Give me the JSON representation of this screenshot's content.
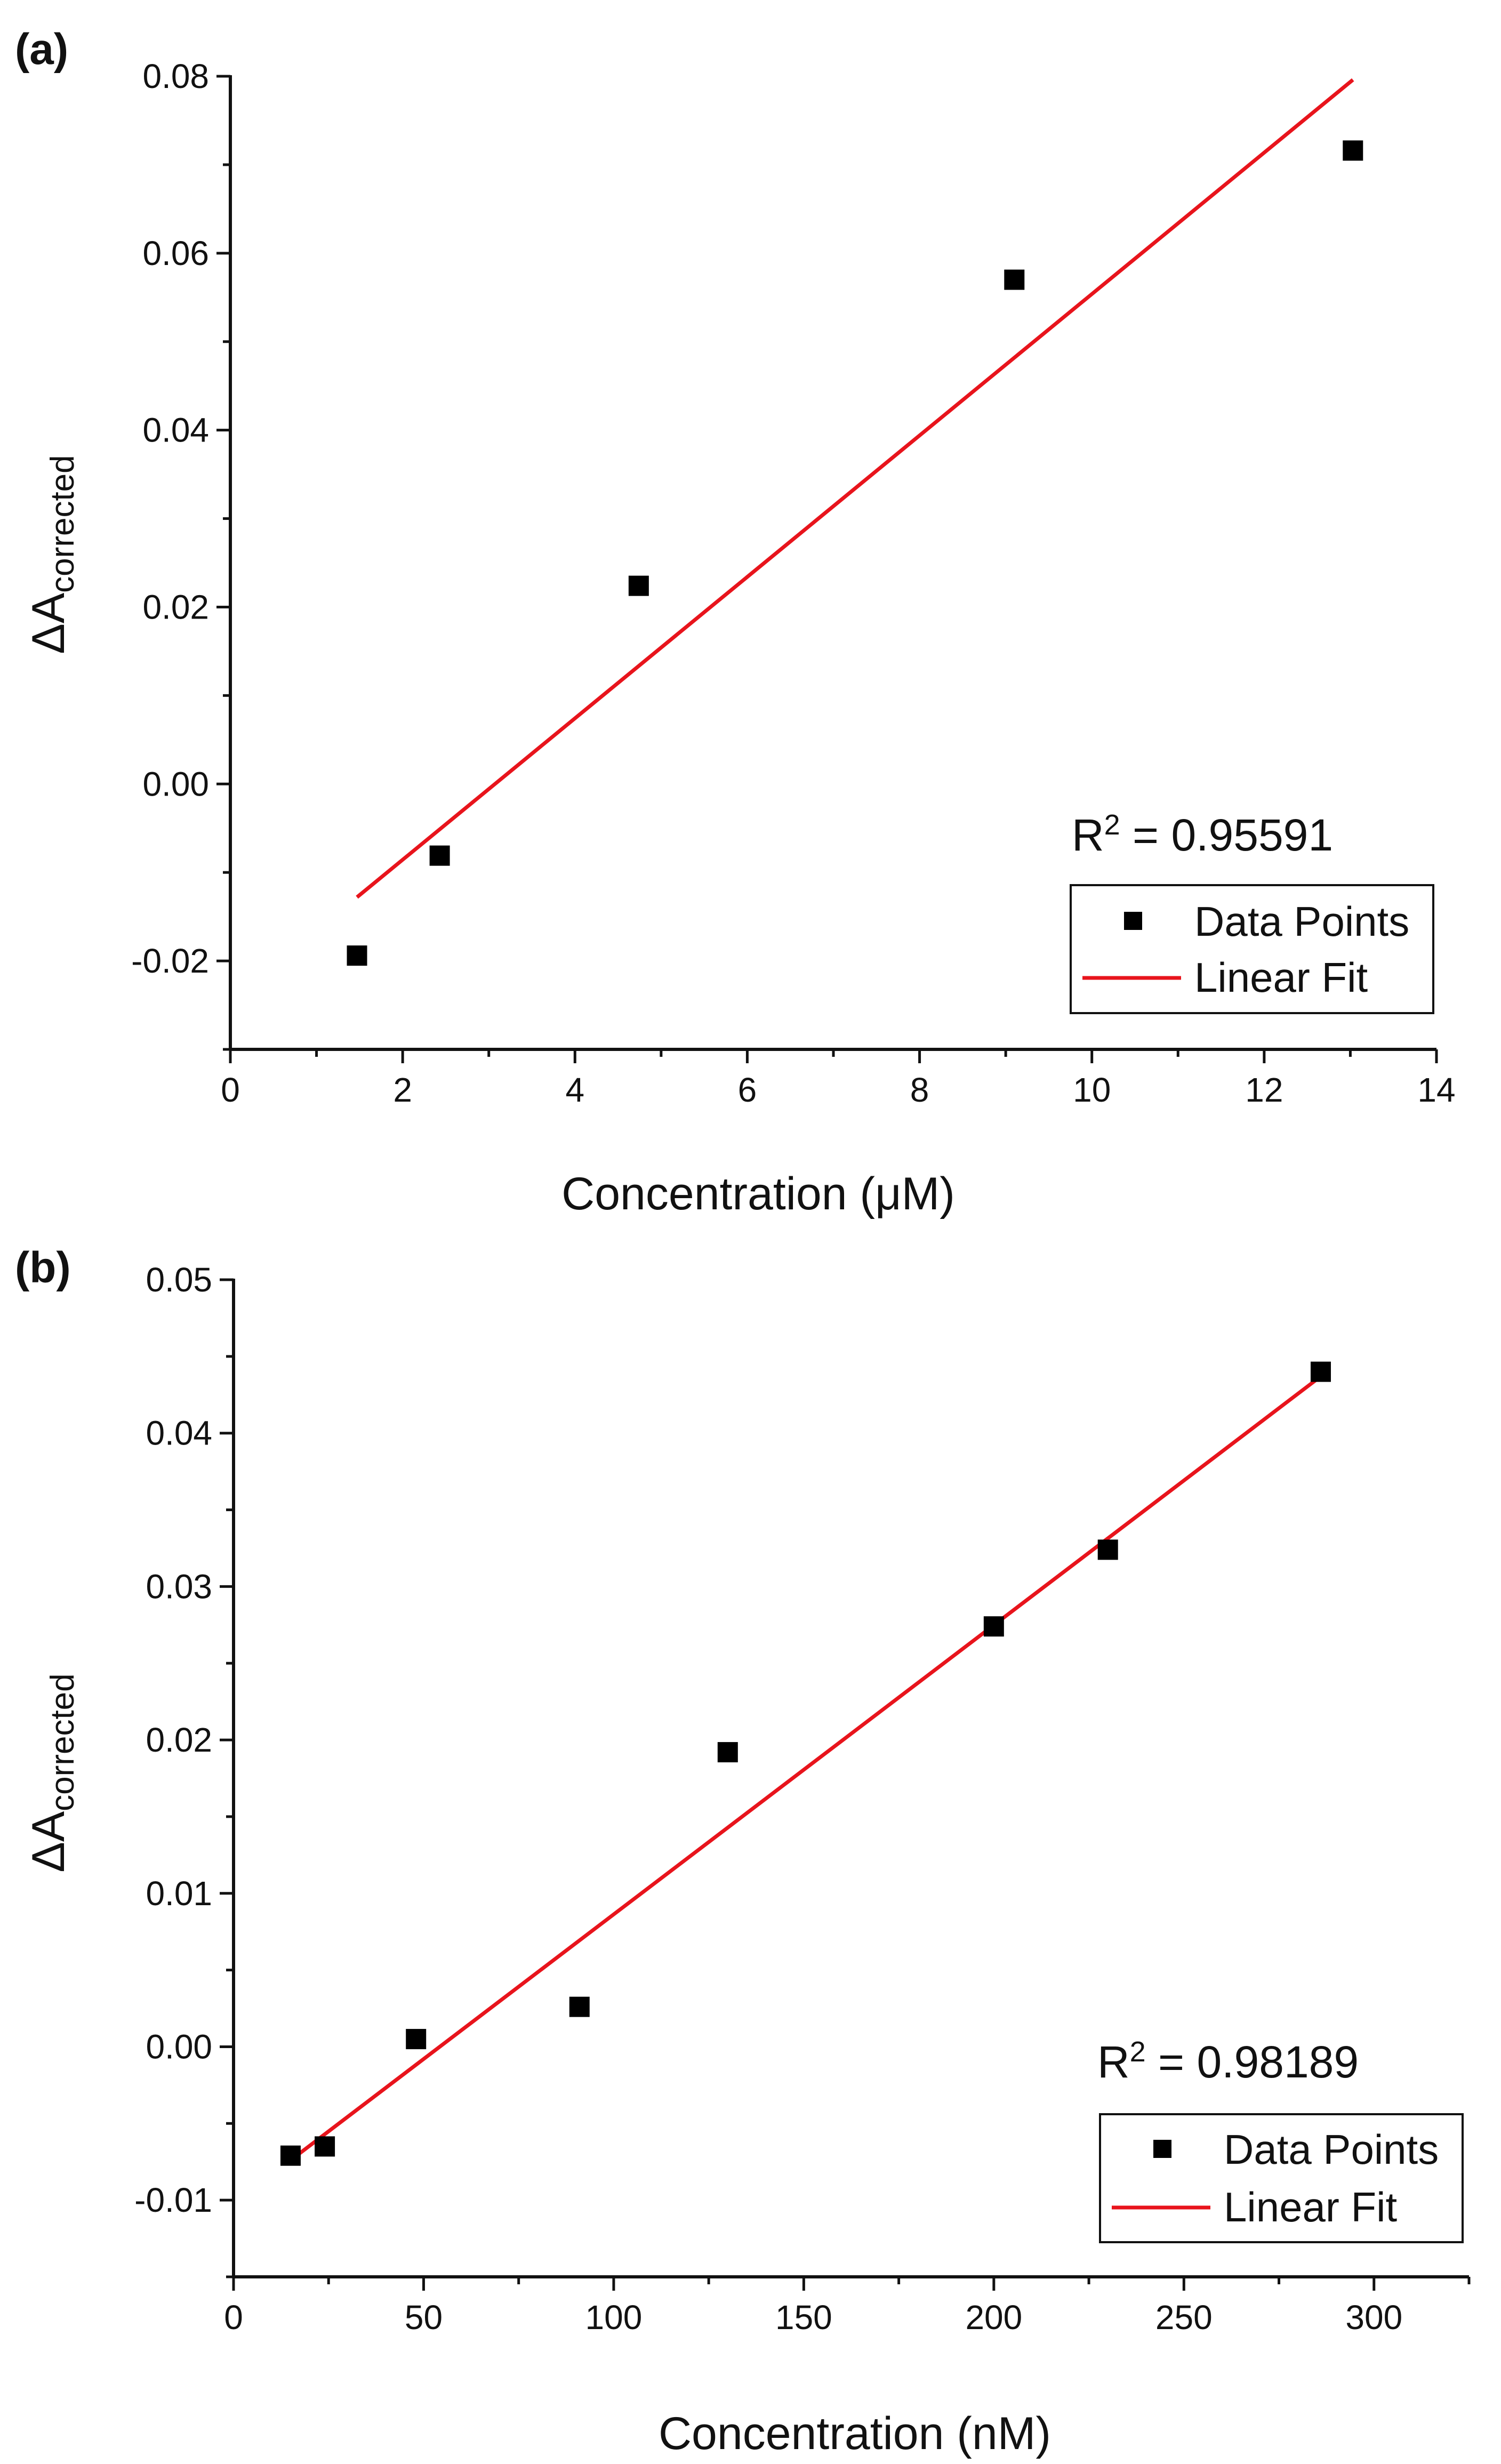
{
  "chart_data": [
    {
      "panel_label": "(a)",
      "type": "scatter",
      "xlabel": "Concentration (μM)",
      "ylabel_main": "ΔA",
      "ylabel_sub": "corrected",
      "xlim": [
        0,
        14
      ],
      "ylim": [
        -0.03,
        0.08
      ],
      "x_ticks": [
        0,
        2,
        4,
        6,
        8,
        10,
        12,
        14
      ],
      "x_tick_labels": [
        "0",
        "2",
        "4",
        "6",
        "8",
        "10",
        "12",
        "14"
      ],
      "y_ticks": [
        -0.02,
        0.0,
        0.02,
        0.04,
        0.06,
        0.08
      ],
      "y_tick_labels": [
        "-0.02",
        "0.00",
        "0.02",
        "0.04",
        "0.06",
        "0.08"
      ],
      "x_minor_step": 1,
      "y_minor_step": 0.01,
      "series": [
        {
          "name": "Data Points",
          "kind": "points",
          "marker": "square",
          "color": "#000000",
          "x": [
            1.47,
            2.43,
            4.74,
            9.1,
            13.03
          ],
          "y": [
            -0.0194,
            -0.0081,
            0.0224,
            0.057,
            0.0716
          ]
        },
        {
          "name": "Linear Fit",
          "kind": "line",
          "color": "#e8141c",
          "x": [
            1.47,
            13.03
          ],
          "y": [
            -0.0128,
            0.0796
          ]
        }
      ],
      "annotation": {
        "prefix": "R",
        "sup": "2",
        "value": " = 0.95591"
      },
      "legend": {
        "position": "lower-right",
        "entries": [
          {
            "label": "Data Points",
            "symbol": "square"
          },
          {
            "label": "Linear Fit",
            "symbol": "line"
          }
        ]
      }
    },
    {
      "panel_label": "(b)",
      "type": "scatter",
      "xlabel": "Concentration (nM)",
      "ylabel_main": "ΔA",
      "ylabel_sub": "corrected",
      "xlim": [
        0,
        325
      ],
      "ylim": [
        -0.015,
        0.05
      ],
      "x_ticks": [
        0,
        50,
        100,
        150,
        200,
        250,
        300
      ],
      "x_tick_labels": [
        "0",
        "50",
        "100",
        "150",
        "200",
        "250",
        "300"
      ],
      "y_ticks": [
        -0.01,
        0.0,
        0.01,
        0.02,
        0.03,
        0.04,
        0.05
      ],
      "y_tick_labels": [
        "-0.01",
        "0.00",
        "0.01",
        "0.02",
        "0.03",
        "0.04",
        "0.05"
      ],
      "x_minor_step": 25,
      "y_minor_step": 0.005,
      "series": [
        {
          "name": "Data Points",
          "kind": "points",
          "marker": "square",
          "color": "#000000",
          "x": [
            15,
            24,
            48,
            91,
            130,
            200,
            230,
            286
          ],
          "y": [
            -0.0071,
            -0.0065,
            0.0005,
            0.0026,
            0.0192,
            0.0274,
            0.0324,
            0.044
          ]
        },
        {
          "name": "Linear Fit",
          "kind": "line",
          "color": "#e8141c",
          "x": [
            15,
            286
          ],
          "y": [
            -0.0074,
            0.0437
          ]
        }
      ],
      "annotation": {
        "prefix": "R",
        "sup": "2",
        "value": " = 0.98189"
      },
      "legend": {
        "position": "lower-right",
        "entries": [
          {
            "label": "Data Points",
            "symbol": "square"
          },
          {
            "label": "Linear Fit",
            "symbol": "line"
          }
        ]
      }
    }
  ]
}
